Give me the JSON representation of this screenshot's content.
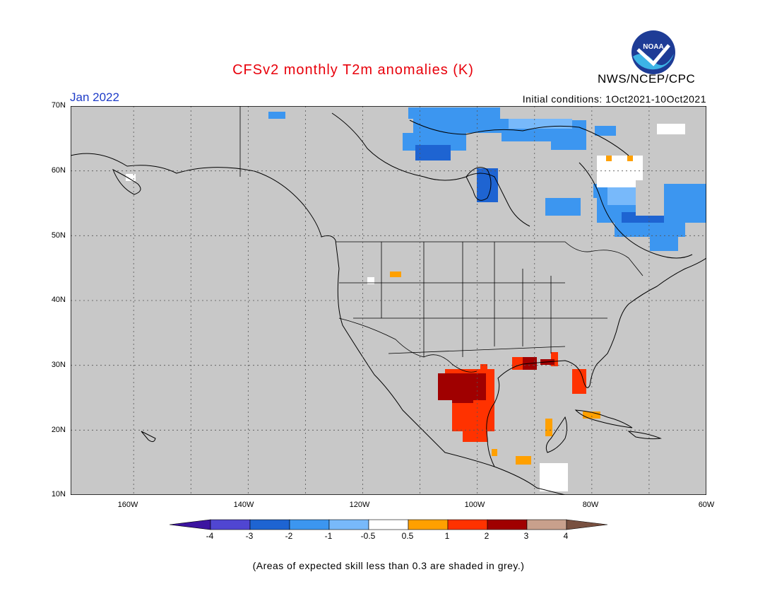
{
  "header": {
    "title": "CFSv2 monthly T2m anomalies (K)",
    "agency": "NWS/NCEP/CPC",
    "logo_text": "NOAA",
    "valid_month": "Jan 2022",
    "initial_conditions": "Initial conditions: 1Oct2021-10Oct2021"
  },
  "map": {
    "region": "North America",
    "lat_labels": [
      "70N",
      "60N",
      "50N",
      "40N",
      "30N",
      "20N",
      "10N"
    ],
    "lon_labels": [
      "160W",
      "140W",
      "120W",
      "100W",
      "80W",
      "60W"
    ],
    "background_color": "#c8c8c8",
    "grid": true,
    "lon_range": [
      -171,
      -60
    ],
    "lat_range": [
      10,
      70
    ]
  },
  "colorbar": {
    "labels": [
      "-4",
      "-3",
      "-2",
      "-1",
      "-0.5",
      "0.5",
      "1",
      "2",
      "3",
      "4"
    ],
    "colors": [
      "#3c14a0",
      "#5046d2",
      "#1e64d2",
      "#3c96f0",
      "#78b9fa",
      "#ffffff",
      "#ffa000",
      "#ff3200",
      "#a00000",
      "#c8a08c",
      "#785040"
    ]
  },
  "footer": {
    "skill_note": "(Areas of expected skill less than 0.3 are shaded in grey.)"
  }
}
